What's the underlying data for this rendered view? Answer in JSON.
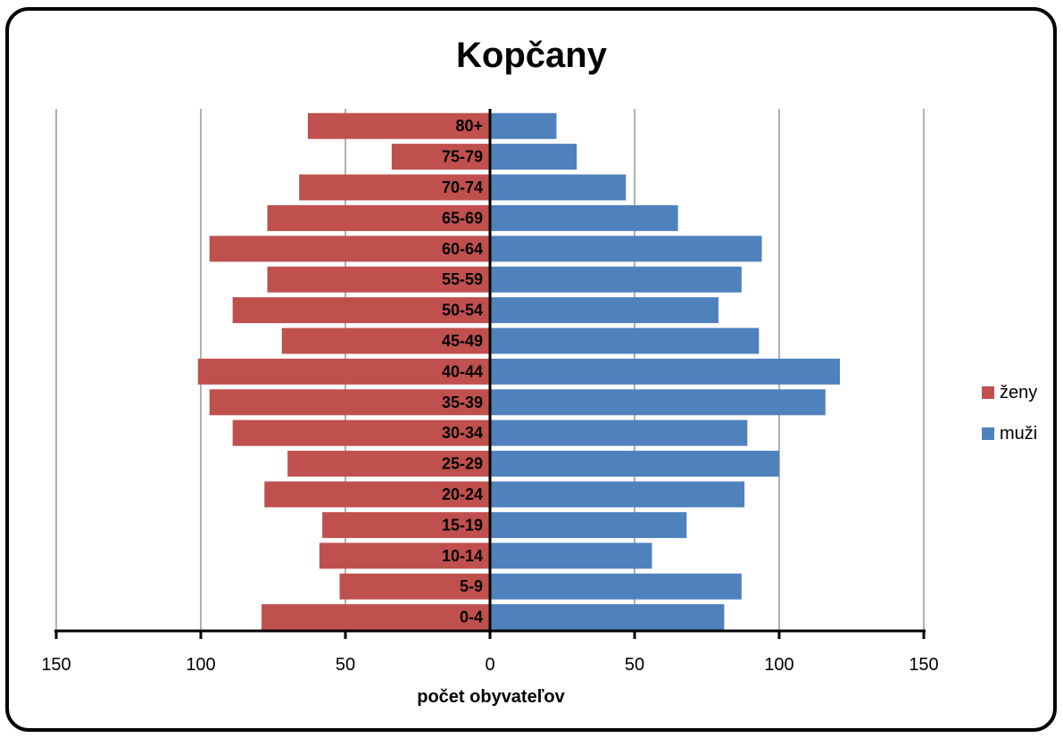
{
  "chart_data": {
    "type": "bar",
    "orientation": "horizontal",
    "title": "Kopčany",
    "xlabel": "počet obyvateľov",
    "ylabel": "",
    "xlim": [
      -150,
      150
    ],
    "x_ticks": [
      -150,
      -100,
      -50,
      0,
      50,
      100,
      150
    ],
    "x_tick_labels": [
      "150",
      "100",
      "50",
      "0",
      "50",
      "100",
      "150"
    ],
    "grid": true,
    "legend_position": "right",
    "categories": [
      "80+",
      "75-79",
      "70-74",
      "65-69",
      "60-64",
      "55-59",
      "50-54",
      "45-49",
      "40-44",
      "35-39",
      "30-34",
      "25-29",
      "20-24",
      "15-19",
      "10-14",
      "5-9",
      "0-4"
    ],
    "series": [
      {
        "name": "ženy",
        "color": "#c0504d",
        "side": "left",
        "values": [
          63,
          34,
          66,
          77,
          97,
          77,
          89,
          72,
          101,
          97,
          89,
          70,
          78,
          58,
          59,
          52,
          79
        ]
      },
      {
        "name": "muži",
        "color": "#4f81bd",
        "side": "right",
        "values": [
          23,
          30,
          47,
          65,
          94,
          87,
          79,
          93,
          121,
          116,
          89,
          100,
          88,
          68,
          56,
          87,
          81
        ]
      }
    ]
  }
}
